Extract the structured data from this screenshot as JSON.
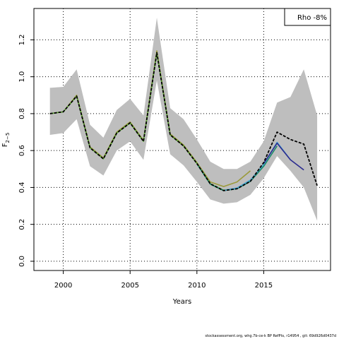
{
  "chart_data": {
    "type": "line",
    "title": "",
    "xlabel": "Years",
    "ylabel": "F",
    "ylabel_sub": "2−5",
    "xlim": [
      1997.8,
      2020.0
    ],
    "ylim": [
      -0.05,
      1.37
    ],
    "x_ticks": [
      2000,
      2005,
      2010,
      2015
    ],
    "y_ticks": [
      0.0,
      0.2,
      0.4,
      0.6,
      0.8,
      1.0,
      1.2
    ],
    "y_tick_labels": [
      "0.0",
      "0.2",
      "0.4",
      "0.6",
      "0.8",
      "1.0",
      "1.2"
    ],
    "grid": true,
    "legend": {
      "text": "Rho -8%",
      "placement": "top-right"
    },
    "band": {
      "color": "#bebebe",
      "x": [
        1999,
        2000,
        2001,
        2002,
        2003,
        2004,
        2005,
        2006,
        2007,
        2008,
        2009,
        2010,
        2011,
        2012,
        2013,
        2014,
        2015,
        2016,
        2017,
        2018,
        2019
      ],
      "upper": [
        0.94,
        0.945,
        1.04,
        0.74,
        0.67,
        0.82,
        0.88,
        0.79,
        1.32,
        0.83,
        0.77,
        0.66,
        0.54,
        0.5,
        0.5,
        0.54,
        0.65,
        0.86,
        0.89,
        1.04,
        0.79
      ],
      "lower": [
        0.685,
        0.695,
        0.77,
        0.515,
        0.465,
        0.6,
        0.65,
        0.55,
        0.98,
        0.58,
        0.52,
        0.43,
        0.335,
        0.312,
        0.32,
        0.36,
        0.45,
        0.57,
        0.49,
        0.4,
        0.22
      ]
    },
    "series": [
      {
        "color": "#9a9a3a",
        "width": 1.6,
        "dash": "",
        "x": [
          1999,
          2000,
          2001,
          2002,
          2003,
          2004,
          2005,
          2006,
          2007,
          2008,
          2009,
          2010,
          2011,
          2012,
          2013,
          2014
        ],
        "values": [
          0.8,
          0.81,
          0.9,
          0.62,
          0.56,
          0.7,
          0.755,
          0.655,
          1.14,
          0.69,
          0.63,
          0.535,
          0.43,
          0.405,
          0.43,
          0.49
        ]
      },
      {
        "color": "#5fae3a",
        "width": 1.6,
        "dash": "",
        "x": [
          1999,
          2000,
          2001,
          2002,
          2003,
          2004,
          2005,
          2006,
          2007,
          2008,
          2009,
          2010,
          2011,
          2012,
          2013,
          2014,
          2015
        ],
        "values": [
          0.8,
          0.81,
          0.895,
          0.615,
          0.555,
          0.695,
          0.75,
          0.65,
          1.13,
          0.685,
          0.625,
          0.53,
          0.42,
          0.385,
          0.395,
          0.435,
          0.52
        ]
      },
      {
        "color": "#1b8a6a",
        "width": 1.6,
        "dash": "",
        "x": [
          2010,
          2011,
          2012,
          2013,
          2014,
          2015,
          2016
        ],
        "values": [
          0.528,
          0.418,
          0.383,
          0.393,
          0.433,
          0.515,
          0.625
        ]
      },
      {
        "color": "#4aa6d6",
        "width": 1.6,
        "dash": "",
        "x": [
          2012,
          2013,
          2014,
          2015,
          2016,
          2017
        ],
        "values": [
          0.384,
          0.397,
          0.44,
          0.525,
          0.645,
          0.55
        ]
      },
      {
        "color": "#2b2b8f",
        "width": 1.6,
        "dash": "",
        "x": [
          2015,
          2016,
          2017,
          2018
        ],
        "values": [
          0.53,
          0.64,
          0.55,
          0.495
        ]
      },
      {
        "color": "#000000",
        "width": 1.8,
        "dash": "4,2",
        "x": [
          1999,
          2000,
          2001,
          2002,
          2003,
          2004,
          2005,
          2006,
          2007,
          2008,
          2009,
          2010,
          2011,
          2012,
          2013,
          2014,
          2015,
          2016,
          2017,
          2018,
          2019
        ],
        "values": [
          0.8,
          0.81,
          0.895,
          0.615,
          0.555,
          0.695,
          0.75,
          0.65,
          1.13,
          0.685,
          0.625,
          0.53,
          0.42,
          0.383,
          0.393,
          0.433,
          0.535,
          0.7,
          0.66,
          0.635,
          0.41
        ]
      }
    ]
  },
  "footer_text": "stockassessment.org, whg.7b-ce-k  BP RefPts,  r14954 ,  git: 69d926d0437d"
}
